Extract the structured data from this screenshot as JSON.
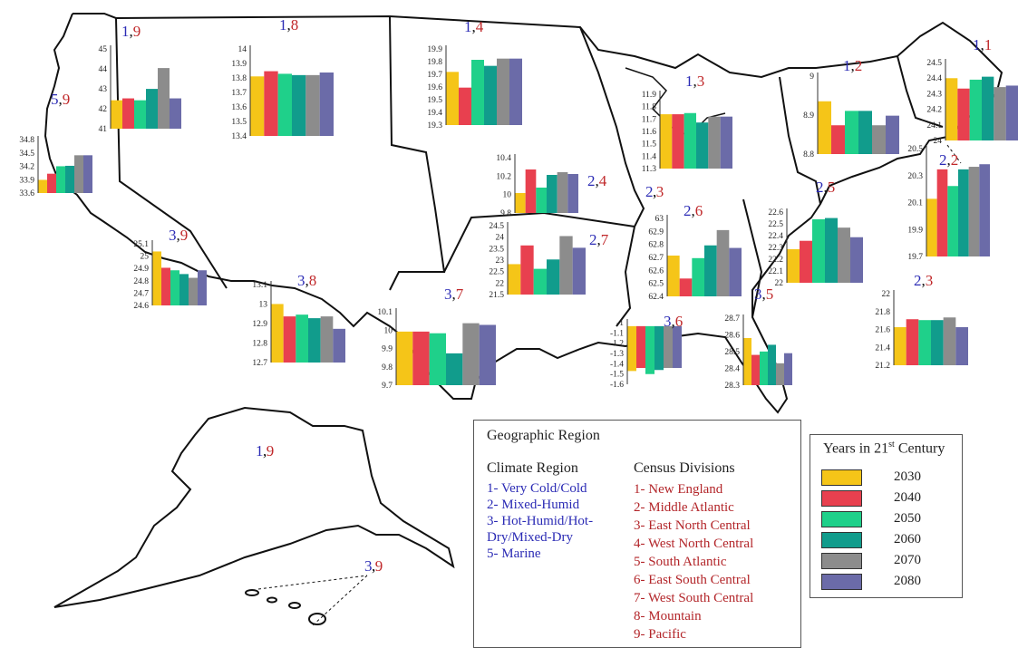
{
  "series_colors": [
    "#f5c518",
    "#e8404f",
    "#1fd08a",
    "#119c8c",
    "#8c8c8c",
    "#6b6ba8"
  ],
  "charts": [
    {
      "id": "1-9-pacific-nw",
      "ticks": [
        "45",
        "44",
        "43",
        "42",
        "41"
      ],
      "values": [
        42.3,
        42.4,
        42.3,
        42.9,
        44.0,
        42.4
      ],
      "domain": [
        40.8,
        45.2
      ],
      "label_climate": "1",
      "label_division": "9"
    },
    {
      "id": "1-8",
      "ticks": [
        "14",
        "13.9",
        "13.8",
        "13.7",
        "13.6",
        "13.5",
        "13.4"
      ],
      "values": [
        13.81,
        13.85,
        13.83,
        13.82,
        13.82,
        13.84
      ],
      "domain": [
        13.35,
        14.05
      ],
      "label_climate": "1",
      "label_division": "8"
    },
    {
      "id": "1-4",
      "ticks": [
        "19.9",
        "19.8",
        "19.7",
        "19.6",
        "19.5",
        "19.4",
        "19.3"
      ],
      "values": [
        19.71,
        19.58,
        19.81,
        19.76,
        19.82,
        19.82
      ],
      "domain": [
        19.27,
        19.93
      ],
      "label_climate": "1",
      "label_division": "4"
    },
    {
      "id": "1-3",
      "ticks": [
        "11.9",
        "11.8",
        "11.7",
        "11.6",
        "11.5",
        "11.4",
        "11.3"
      ],
      "values": [
        11.73,
        11.73,
        11.74,
        11.66,
        11.71,
        11.71
      ],
      "domain": [
        11.27,
        11.93
      ],
      "label_climate": "1",
      "label_division": "3"
    },
    {
      "id": "1-2",
      "ticks": [
        "9",
        "8.9",
        "8.8"
      ],
      "values": [
        8.96,
        8.91,
        8.94,
        8.94,
        8.91,
        8.93
      ],
      "domain": [
        8.85,
        9.02
      ],
      "label_climate": "1",
      "label_division": "2"
    },
    {
      "id": "1-1",
      "ticks": [
        "24.5",
        "24.4",
        "24.3",
        "24.2",
        "24.1",
        "24"
      ],
      "values": [
        24.42,
        24.35,
        24.41,
        24.43,
        24.36,
        24.37
      ],
      "domain": [
        24.0,
        24.55
      ],
      "label_climate": "1",
      "label_division": "1"
    },
    {
      "id": "5-9",
      "ticks": [
        "34.8",
        "34.5",
        "34.2",
        "33.9",
        "33.6"
      ],
      "values": [
        33.9,
        34.04,
        34.21,
        34.22,
        34.46,
        34.46
      ],
      "domain": [
        33.6,
        34.9
      ],
      "label_climate": "5",
      "label_division": "9"
    },
    {
      "id": "2-4",
      "ticks": [
        "10.4",
        "10.2",
        "10",
        "9.8"
      ],
      "values": [
        10.02,
        10.28,
        10.08,
        10.22,
        10.25,
        10.23
      ],
      "domain": [
        9.8,
        10.45
      ],
      "label_climate": "2",
      "label_division": "4"
    },
    {
      "id": "2-2",
      "ticks": [
        "20.5",
        "20.3",
        "20.1",
        "19.9",
        "19.7"
      ],
      "values": [
        20.15,
        20.38,
        20.25,
        20.38,
        20.4,
        20.42
      ],
      "domain": [
        19.7,
        20.57
      ],
      "label_climate": "2",
      "label_division": "2"
    },
    {
      "id": "3-9",
      "ticks": [
        "25.1",
        "25",
        "24.9",
        "24.8",
        "24.7",
        "24.6"
      ],
      "values": [
        25.03,
        24.9,
        24.88,
        24.85,
        24.82,
        24.88
      ],
      "domain": [
        24.6,
        25.12
      ],
      "label_climate": "3",
      "label_division": "9"
    },
    {
      "id": "2-7",
      "ticks": [
        "24.5",
        "24",
        "23.5",
        "23",
        "22.5",
        "22",
        "21.5"
      ],
      "values": [
        22.8,
        23.6,
        22.6,
        23.0,
        24.0,
        23.5
      ],
      "domain": [
        21.5,
        24.6
      ],
      "label_climate": "2",
      "label_division": "7"
    },
    {
      "id": "2-6",
      "ticks": [
        "63",
        "62.9",
        "62.8",
        "62.7",
        "62.6",
        "62.5",
        "62.4"
      ],
      "values": [
        62.7,
        62.52,
        62.68,
        62.78,
        62.9,
        62.76
      ],
      "domain": [
        62.38,
        63.02
      ],
      "label_climate": "2",
      "label_division": "6"
    },
    {
      "id": "2-5",
      "ticks": [
        "22.6",
        "22.5",
        "22.4",
        "22.3",
        "22.2",
        "22.1",
        "22"
      ],
      "values": [
        22.28,
        22.35,
        22.53,
        22.54,
        22.46,
        22.38
      ],
      "domain": [
        22.0,
        22.62
      ],
      "label_climate": "2",
      "label_division": "5"
    },
    {
      "id": "3-8",
      "ticks": [
        "13.1",
        "13",
        "12.9",
        "12.8",
        "12.7"
      ],
      "values": [
        13.0,
        12.93,
        12.94,
        12.92,
        12.93,
        12.86
      ],
      "domain": [
        12.67,
        13.13
      ],
      "label_climate": "3",
      "label_division": "8"
    },
    {
      "id": "3-7",
      "ticks": [
        "10.1",
        "10",
        "9.9",
        "9.8",
        "9.7"
      ],
      "values": [
        9.98,
        9.98,
        9.97,
        9.85,
        10.03,
        10.02
      ],
      "domain": [
        9.66,
        10.12
      ],
      "label_climate": "3",
      "label_division": "7"
    },
    {
      "id": "3-6",
      "ticks": [
        "-1",
        "-1.1",
        "-1.2",
        "-1.3",
        "-1.4",
        "-1.5",
        "-1.6"
      ],
      "values": [
        -1.05,
        -1.05,
        -1.05,
        -1.05,
        -1.05,
        -1.05
      ],
      "domain": [
        -1.62,
        -0.98
      ],
      "neg_to": [
        -1.49,
        -1.46,
        -1.52,
        -1.48,
        -1.46,
        -1.46
      ],
      "label_climate": "3",
      "label_division": "6"
    },
    {
      "id": "3-5",
      "ticks": [
        "28.7",
        "28.6",
        "28.5",
        "28.4",
        "28.3"
      ],
      "values": [
        28.58,
        28.48,
        28.5,
        28.54,
        28.43,
        28.49
      ],
      "domain": [
        28.3,
        28.72
      ],
      "label_climate": "3",
      "label_division": "5"
    },
    {
      "id": "2-3",
      "ticks": [
        "22",
        "21.8",
        "21.6",
        "21.4",
        "21.2"
      ],
      "values": [
        21.63,
        21.72,
        21.71,
        21.71,
        21.74,
        21.63
      ],
      "domain": [
        21.2,
        22.05
      ],
      "label_climate": "2",
      "label_division": "3"
    }
  ],
  "extra_labels": [
    {
      "id": "2-3-center",
      "climate": "2",
      "division": "3"
    },
    {
      "id": "1-9-alaska",
      "climate": "1",
      "division": "9"
    },
    {
      "id": "3-9-hawaii",
      "climate": "3",
      "division": "9"
    }
  ],
  "legend": {
    "title": "Geographic Region",
    "climate_title": "Climate Region",
    "climate_items": [
      "1- Very Cold/Cold",
      "2- Mixed-Humid",
      "3- Hot-Humid/Hot-",
      "Dry/Mixed-Dry",
      "5- Marine"
    ],
    "census_title": "Census Divisions",
    "census_items": [
      "1- New England",
      "2- Middle Atlantic",
      "3- East North Central",
      "4- West North Central",
      "5- South Atlantic",
      "6- East South Central",
      "7- West South Central",
      "8- Mountain",
      "9- Pacific"
    ]
  },
  "years_legend": {
    "title": "Years in 21",
    "title_sup": "st",
    "title_tail": " Century",
    "years": [
      "2030",
      "2040",
      "2050",
      "2060",
      "2070",
      "2080"
    ]
  }
}
